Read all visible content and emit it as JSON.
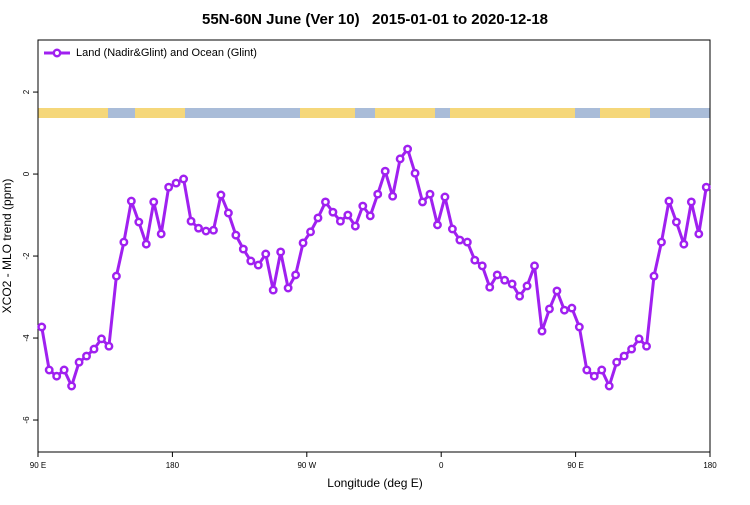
{
  "chart_data": {
    "type": "line",
    "title": "55N-60N June (Ver 10)   2015-01-01 to 2020-12-18",
    "x_label": "Longitude (deg E)",
    "y_label": "XCO2 - MLO trend (ppm)",
    "xlim": [
      90,
      540
    ],
    "xticks": [
      {
        "value": 90,
        "label": "90 E"
      },
      {
        "value": 180,
        "label": "180"
      },
      {
        "value": 270,
        "label": "90 W"
      },
      {
        "value": 360,
        "label": "0"
      },
      {
        "value": 450,
        "label": "90 E"
      },
      {
        "value": 540,
        "label": "180"
      }
    ],
    "ylim": [
      -6.78,
      3.27
    ],
    "yticks": [
      -6,
      -4,
      -2,
      0,
      2
    ],
    "legend": "top-left",
    "x": [
      92.5,
      97.5,
      102.5,
      107.5,
      112.5,
      117.5,
      122.5,
      127.5,
      132.5,
      137.5,
      142.5,
      147.5,
      152.5,
      157.5,
      162.5,
      167.5,
      172.5,
      177.5,
      182.5,
      187.5,
      192.5,
      197.5,
      202.5,
      207.5,
      212.5,
      217.5,
      222.5,
      227.5,
      232.5,
      237.5,
      242.5,
      247.5,
      252.5,
      257.5,
      262.5,
      267.5,
      272.5,
      277.5,
      282.5,
      287.5,
      292.5,
      297.5,
      302.5,
      307.5,
      312.5,
      317.5,
      322.5,
      327.5,
      332.5,
      337.5,
      342.5,
      347.5,
      352.5,
      357.5,
      362.5,
      367.5,
      372.5,
      377.5,
      382.5,
      387.5,
      392.5,
      397.5,
      402.5,
      407.5,
      412.5,
      417.5,
      422.5,
      427.5,
      432.5,
      437.5,
      442.5,
      447.5,
      452.5,
      457.5,
      462.5,
      467.5,
      472.5,
      477.5,
      482.5,
      487.5,
      492.5,
      497.5,
      502.5,
      507.5,
      512.5,
      517.5,
      522.5,
      527.5,
      532.5,
      537.5
    ],
    "series": [
      {
        "name": "Land (Nadir&Glint) and Ocean (Glint)",
        "color": "#a020f0",
        "values": [
          -3.73,
          -4.78,
          -4.93,
          -4.78,
          -5.17,
          -4.59,
          -4.44,
          -4.27,
          -4.02,
          -4.2,
          -2.49,
          -1.66,
          -0.66,
          -1.17,
          -1.71,
          -0.68,
          -1.46,
          -0.32,
          -0.22,
          -0.12,
          -1.15,
          -1.32,
          -1.39,
          -1.37,
          -0.51,
          -0.95,
          -1.49,
          -1.83,
          -2.12,
          -2.22,
          -1.95,
          -2.83,
          -1.9,
          -2.78,
          -2.46,
          -1.68,
          -1.41,
          -1.07,
          -0.68,
          -0.93,
          -1.15,
          -1.0,
          -1.27,
          -0.78,
          -1.02,
          -0.49,
          0.07,
          -0.54,
          0.37,
          0.61,
          0.02,
          -0.68,
          -0.49,
          -1.24,
          -0.56,
          -1.34,
          -1.61,
          -1.66,
          -2.1,
          -2.24,
          -2.76,
          -2.46,
          -2.59,
          -2.68,
          -2.98,
          -2.73,
          -2.24,
          -3.83,
          -3.29,
          -2.85,
          -3.32,
          -3.27,
          -3.73,
          -4.78,
          -4.93,
          -4.78,
          -5.17,
          -4.59,
          -4.44,
          -4.27,
          -4.02,
          -4.2,
          -2.49,
          -1.66,
          -0.66,
          -1.17,
          -1.71,
          -0.68,
          -1.46,
          -0.32
        ]
      }
    ]
  }
}
